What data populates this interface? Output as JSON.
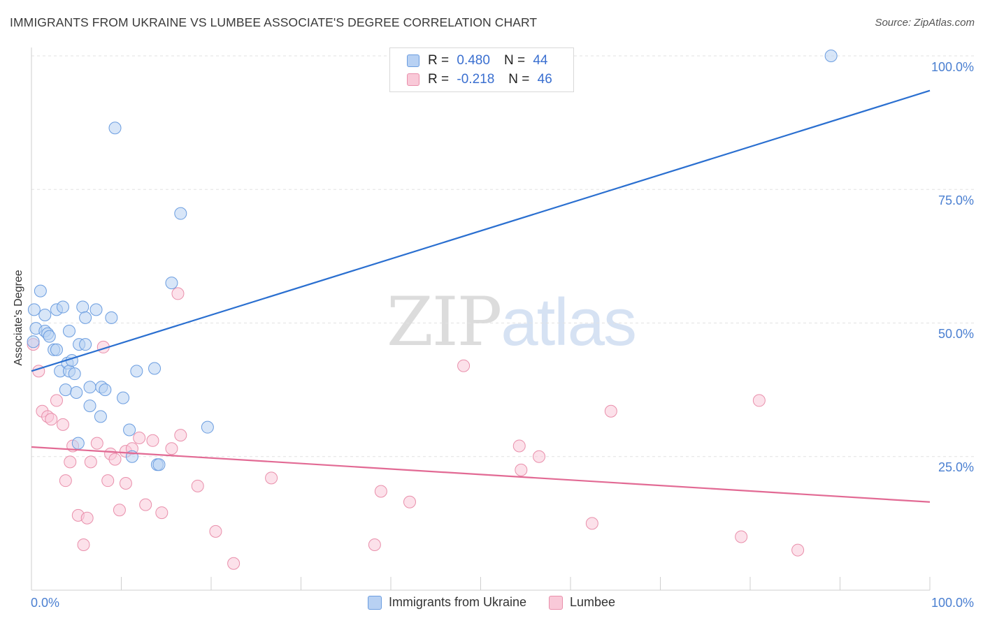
{
  "title": "IMMIGRANTS FROM UKRAINE VS LUMBEE ASSOCIATE'S DEGREE CORRELATION CHART",
  "source": "Source: ZipAtlas.com",
  "watermark": {
    "zip": "ZIP",
    "atlas": "atlas"
  },
  "stats": {
    "blue": {
      "r_label": "R =",
      "r_value": "0.480",
      "n_label": "N =",
      "n_value": "44"
    },
    "pink": {
      "r_label": "R =",
      "r_value": "-0.218",
      "n_label": "N =",
      "n_value": "46"
    }
  },
  "legend": {
    "blue": "Immigrants from Ukraine",
    "pink": "Lumbee"
  },
  "colors": {
    "blue_fill": "#b8d1f3",
    "blue_stroke": "#6b9de0",
    "blue_line": "#2a6fd0",
    "pink_fill": "#f9c9d8",
    "pink_stroke": "#e98fab",
    "pink_line": "#e26a94",
    "tick_text": "#4a7fd1",
    "grid": "#e2e2e2"
  },
  "chart_data": {
    "type": "scatter",
    "title": "IMMIGRANTS FROM UKRAINE VS LUMBEE ASSOCIATE'S DEGREE CORRELATION CHART",
    "xlabel": "",
    "ylabel": "Associate's Degree",
    "xlim": [
      0,
      100
    ],
    "ylim": [
      0,
      100
    ],
    "x_ticks": [
      "0.0%",
      "100.0%"
    ],
    "y_ticks": [
      "25.0%",
      "50.0%",
      "75.0%",
      "100.0%"
    ],
    "grid": true,
    "legend_position": "bottom",
    "series": [
      {
        "name": "Immigrants from Ukraine",
        "points": [
          [
            0.3,
            52.5
          ],
          [
            0.5,
            49.0
          ],
          [
            1.0,
            56.0
          ],
          [
            1.5,
            51.5
          ],
          [
            1.5,
            48.5
          ],
          [
            1.8,
            48.0
          ],
          [
            2.0,
            47.5
          ],
          [
            2.5,
            45.0
          ],
          [
            2.8,
            52.5
          ],
          [
            2.8,
            45.0
          ],
          [
            3.2,
            41.0
          ],
          [
            3.5,
            53.0
          ],
          [
            3.8,
            37.5
          ],
          [
            4.0,
            42.5
          ],
          [
            4.2,
            41.0
          ],
          [
            4.2,
            48.5
          ],
          [
            4.5,
            43.0
          ],
          [
            4.8,
            40.5
          ],
          [
            5.0,
            37.0
          ],
          [
            5.2,
            27.5
          ],
          [
            5.3,
            46.0
          ],
          [
            5.7,
            53.0
          ],
          [
            6.0,
            46.0
          ],
          [
            6.0,
            51.0
          ],
          [
            6.5,
            38.0
          ],
          [
            6.5,
            34.5
          ],
          [
            7.2,
            52.5
          ],
          [
            7.7,
            32.5
          ],
          [
            7.8,
            38.0
          ],
          [
            8.2,
            37.5
          ],
          [
            8.9,
            51.0
          ],
          [
            9.3,
            86.5
          ],
          [
            10.2,
            36.0
          ],
          [
            10.9,
            30.0
          ],
          [
            11.2,
            25.0
          ],
          [
            11.7,
            41.0
          ],
          [
            13.7,
            41.5
          ],
          [
            14.0,
            23.5
          ],
          [
            14.2,
            23.5
          ],
          [
            15.6,
            57.5
          ],
          [
            16.6,
            70.5
          ],
          [
            19.6,
            30.5
          ],
          [
            89.0,
            100.0
          ],
          [
            0.2,
            46.5
          ]
        ],
        "trend": {
          "x": [
            0,
            100
          ],
          "y": [
            41.0,
            93.5
          ]
        }
      },
      {
        "name": "Lumbee",
        "points": [
          [
            0.2,
            46.0
          ],
          [
            0.8,
            41.0
          ],
          [
            1.2,
            33.5
          ],
          [
            1.8,
            32.5
          ],
          [
            2.2,
            32.0
          ],
          [
            2.8,
            35.5
          ],
          [
            3.5,
            31.0
          ],
          [
            3.8,
            20.5
          ],
          [
            4.3,
            24.0
          ],
          [
            4.6,
            27.0
          ],
          [
            5.2,
            14.0
          ],
          [
            5.8,
            8.5
          ],
          [
            6.2,
            13.5
          ],
          [
            6.6,
            24.0
          ],
          [
            7.3,
            27.5
          ],
          [
            8.0,
            45.5
          ],
          [
            8.5,
            20.5
          ],
          [
            8.8,
            25.5
          ],
          [
            9.3,
            24.5
          ],
          [
            9.8,
            15.0
          ],
          [
            10.5,
            20.0
          ],
          [
            10.5,
            26.0
          ],
          [
            11.2,
            26.5
          ],
          [
            12.0,
            28.5
          ],
          [
            12.7,
            16.0
          ],
          [
            13.5,
            28.0
          ],
          [
            14.5,
            14.5
          ],
          [
            15.6,
            26.5
          ],
          [
            16.3,
            55.5
          ],
          [
            16.6,
            29.0
          ],
          [
            18.5,
            19.5
          ],
          [
            20.5,
            11.0
          ],
          [
            22.5,
            5.0
          ],
          [
            26.7,
            21.0
          ],
          [
            38.2,
            8.5
          ],
          [
            38.9,
            18.5
          ],
          [
            42.1,
            16.5
          ],
          [
            48.1,
            42.0
          ],
          [
            54.3,
            27.0
          ],
          [
            54.5,
            22.5
          ],
          [
            56.5,
            25.0
          ],
          [
            62.4,
            12.5
          ],
          [
            64.5,
            33.5
          ],
          [
            79.0,
            10.0
          ],
          [
            81.0,
            35.5
          ],
          [
            85.3,
            7.5
          ]
        ],
        "trend": {
          "x": [
            0,
            100
          ],
          "y": [
            26.8,
            16.5
          ]
        }
      }
    ]
  }
}
